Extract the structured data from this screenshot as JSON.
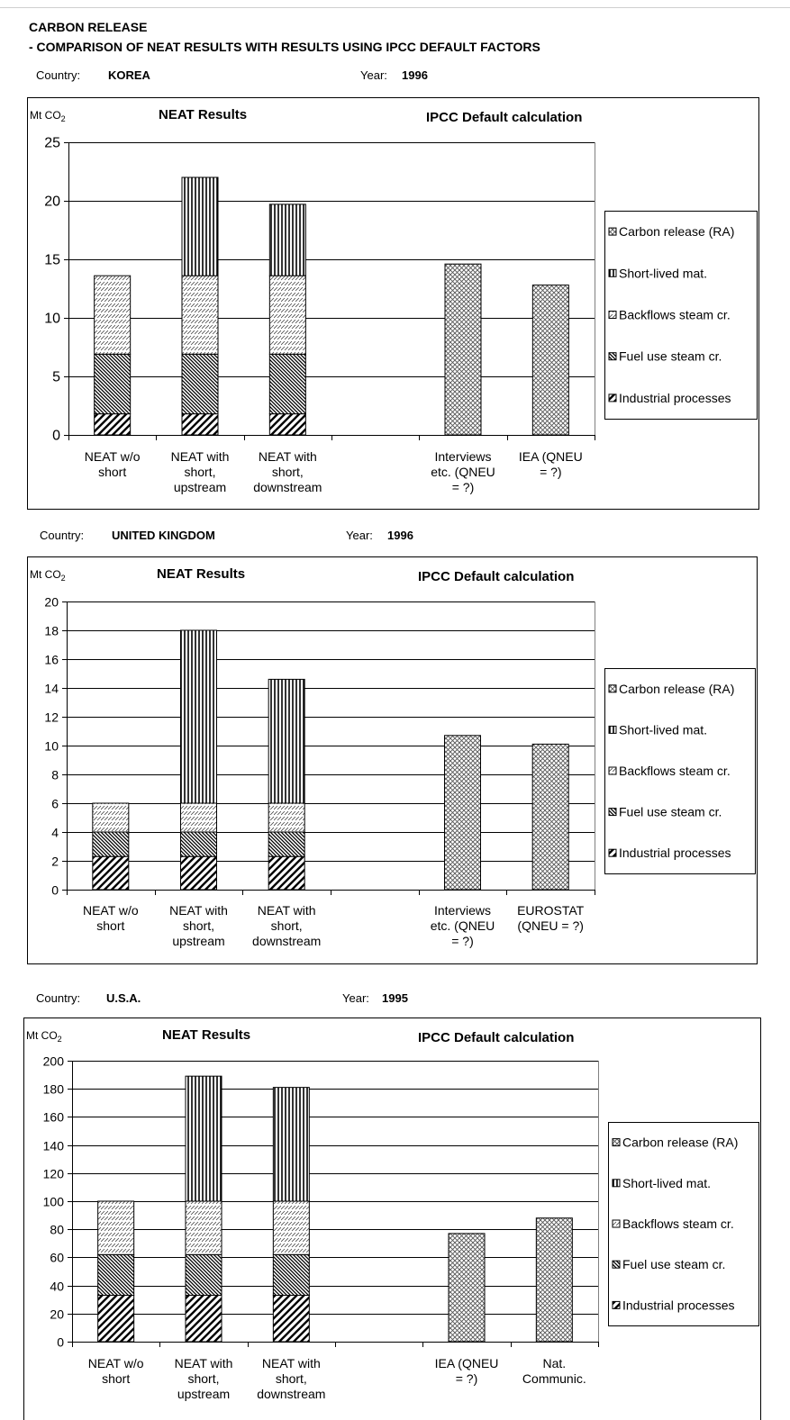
{
  "header": {
    "title": "CARBON RELEASE",
    "subtitle": "- COMPARISON OF NEAT RESULTS WITH RESULTS USING IPCC DEFAULT FACTORS"
  },
  "labels": {
    "country": "Country:",
    "year": "Year:",
    "unit": "Mt CO",
    "unit_sub": "2",
    "neat_results": "NEAT Results",
    "ipcc_default": "IPCC Default calculation"
  },
  "legend": [
    {
      "key": "carbon_release",
      "label": "Carbon release (RA)"
    },
    {
      "key": "short_lived",
      "label": "Short-lived mat."
    },
    {
      "key": "backflows",
      "label": "Backflows steam cr."
    },
    {
      "key": "fuel_use",
      "label": "Fuel use steam cr."
    },
    {
      "key": "industrial",
      "label": "Industrial processes"
    }
  ],
  "chart_data": [
    {
      "type": "bar",
      "stacked": true,
      "country": "KOREA",
      "year": "1996",
      "ylabel": "Mt CO2",
      "ylim": [
        0,
        25
      ],
      "yticks": [
        0,
        5,
        10,
        15,
        20,
        25
      ],
      "grid": true,
      "legend_position": "right",
      "categories": [
        [
          "NEAT w/o",
          "short"
        ],
        [
          "NEAT with",
          "short,",
          "upstream"
        ],
        [
          "NEAT with",
          "short,",
          "downstream"
        ],
        [],
        [
          "Interviews",
          "etc. (QNEU",
          "= ?)"
        ],
        [
          "IEA (QNEU",
          "= ?)"
        ]
      ],
      "series": [
        {
          "name": "Industrial processes",
          "values": [
            1.8,
            1.8,
            1.8,
            0,
            0,
            0
          ]
        },
        {
          "name": "Fuel use steam cr.",
          "values": [
            5.1,
            5.1,
            5.1,
            0,
            0,
            0
          ]
        },
        {
          "name": "Backflows steam cr.",
          "values": [
            6.7,
            6.7,
            6.7,
            0,
            0,
            0
          ]
        },
        {
          "name": "Short-lived mat.",
          "values": [
            0,
            8.4,
            6.1,
            0,
            0,
            0
          ]
        },
        {
          "name": "Carbon release (RA)",
          "values": [
            0,
            0,
            0,
            0,
            14.6,
            12.8
          ]
        }
      ]
    },
    {
      "type": "bar",
      "stacked": true,
      "country": "UNITED KINGDOM",
      "year": "1996",
      "ylabel": "Mt CO2",
      "ylim": [
        0,
        20
      ],
      "yticks": [
        0,
        2,
        4,
        6,
        8,
        10,
        12,
        14,
        16,
        18,
        20
      ],
      "grid": true,
      "legend_position": "right",
      "categories": [
        [
          "NEAT w/o",
          "short"
        ],
        [
          "NEAT with",
          "short,",
          "upstream"
        ],
        [
          "NEAT with",
          "short,",
          "downstream"
        ],
        [],
        [
          "Interviews",
          "etc. (QNEU",
          "= ?)"
        ],
        [
          "EUROSTAT",
          "(QNEU = ?)"
        ]
      ],
      "series": [
        {
          "name": "Industrial processes",
          "values": [
            2.3,
            2.3,
            2.3,
            0,
            0,
            0
          ]
        },
        {
          "name": "Fuel use steam cr.",
          "values": [
            1.7,
            1.7,
            1.7,
            0,
            0,
            0
          ]
        },
        {
          "name": "Backflows steam cr.",
          "values": [
            2.0,
            2.0,
            2.0,
            0,
            0,
            0
          ]
        },
        {
          "name": "Short-lived mat.",
          "values": [
            0,
            12.0,
            8.6,
            0,
            0,
            0
          ]
        },
        {
          "name": "Carbon release (RA)",
          "values": [
            0,
            0,
            0,
            0,
            10.7,
            10.1
          ]
        }
      ]
    },
    {
      "type": "bar",
      "stacked": true,
      "country": "U.S.A.",
      "year": "1995",
      "ylabel": "Mt CO2",
      "ylim": [
        0,
        200
      ],
      "yticks": [
        0,
        20,
        40,
        60,
        80,
        100,
        120,
        140,
        160,
        180,
        200
      ],
      "grid": true,
      "legend_position": "right",
      "categories": [
        [
          "NEAT w/o",
          "short"
        ],
        [
          "NEAT with",
          "short,",
          "upstream"
        ],
        [
          "NEAT with",
          "short,",
          "downstream"
        ],
        [],
        [
          "IEA (QNEU",
          "= ?)"
        ],
        [
          "Nat.",
          "Communic."
        ]
      ],
      "series": [
        {
          "name": "Industrial processes",
          "values": [
            33,
            33,
            33,
            0,
            0,
            0
          ]
        },
        {
          "name": "Fuel use steam cr.",
          "values": [
            29,
            29,
            29,
            0,
            0,
            0
          ]
        },
        {
          "name": "Backflows steam cr.",
          "values": [
            38,
            38,
            38,
            0,
            0,
            0
          ]
        },
        {
          "name": "Short-lived mat.",
          "values": [
            0,
            89,
            81,
            0,
            0,
            0
          ]
        },
        {
          "name": "Carbon release (RA)",
          "values": [
            0,
            0,
            0,
            0,
            77,
            88
          ]
        }
      ]
    }
  ]
}
